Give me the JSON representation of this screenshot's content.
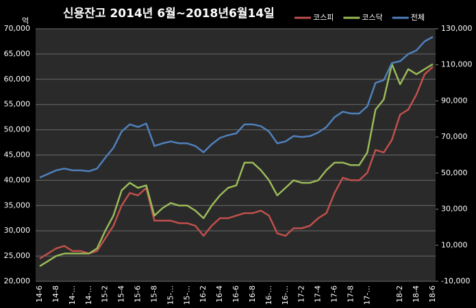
{
  "chart_data": {
    "type": "line",
    "title": "신용잔고  2014년 6월~2018년6월14일",
    "y_unit": "억",
    "categories": [
      "14-6",
      null,
      "14-8",
      null,
      "14-...",
      null,
      "14-...",
      null,
      "15-2",
      null,
      "15-4",
      null,
      "15-6",
      null,
      "15-8",
      null,
      "15-...",
      null,
      "15-...",
      null,
      "16-2",
      null,
      "16-4",
      null,
      "16-6",
      null,
      "16-8",
      null,
      "16-...",
      null,
      "16-...",
      null,
      "17-2",
      null,
      "17-4",
      null,
      "17-6",
      null,
      "17-8",
      null,
      "17-...",
      null,
      null,
      null,
      "18-2",
      null,
      "18-4",
      null,
      "18-6"
    ],
    "series": [
      {
        "name": "코스피",
        "color": "#c0504d",
        "values": [
          24500,
          25500,
          26500,
          27000,
          26000,
          26000,
          25500,
          26000,
          28500,
          31000,
          35000,
          37500,
          37000,
          38500,
          32000,
          32000,
          32000,
          31500,
          31500,
          31000,
          29000,
          31000,
          32500,
          32500,
          33000,
          33500,
          33500,
          34000,
          33000,
          29500,
          29000,
          30500,
          30500,
          31000,
          32500,
          33500,
          37500,
          40500,
          40000,
          40000,
          41500,
          46000,
          45500,
          48000,
          53000,
          54000,
          57000,
          61000,
          62500
        ]
      },
      {
        "name": "코스닥",
        "color": "#9bbb59",
        "values": [
          23000,
          24000,
          25000,
          25500,
          25500,
          25500,
          25500,
          26500,
          30000,
          33000,
          38000,
          39500,
          38500,
          39000,
          33000,
          34500,
          35500,
          35000,
          35000,
          34000,
          32500,
          35000,
          37000,
          38500,
          39000,
          43500,
          43500,
          42000,
          40000,
          37000,
          38500,
          40000,
          39500,
          39500,
          40000,
          42000,
          43500,
          43500,
          43000,
          43000,
          45500,
          54000,
          56000,
          63000,
          59000,
          62000,
          61000,
          62000,
          63000
        ]
      },
      {
        "name": "전체",
        "color": "#4f81bd",
        "axis": "y2",
        "values": [
          47500,
          49500,
          51500,
          52500,
          51500,
          51500,
          51000,
          52500,
          58500,
          64000,
          73000,
          77000,
          75500,
          77500,
          65000,
          66500,
          67500,
          66500,
          66500,
          65000,
          61500,
          66000,
          69500,
          71000,
          72000,
          77000,
          77000,
          76000,
          73000,
          66500,
          67500,
          70500,
          70000,
          70500,
          72500,
          75500,
          81000,
          84000,
          83000,
          83000,
          87000,
          100000,
          101500,
          111000,
          112000,
          116000,
          118000,
          123000,
          125500
        ]
      }
    ],
    "ylim": [
      20000,
      70000
    ],
    "yticks": [
      {
        "value": 20000,
        "label": "20,000"
      },
      {
        "value": 25000,
        "label": "25,000"
      },
      {
        "value": 30000,
        "label": "30,000"
      },
      {
        "value": 35000,
        "label": "35,000"
      },
      {
        "value": 40000,
        "label": "40,000"
      },
      {
        "value": 45000,
        "label": "45,000"
      },
      {
        "value": 50000,
        "label": "50,000"
      },
      {
        "value": 55000,
        "label": "55,000"
      },
      {
        "value": 60000,
        "label": "60,000"
      },
      {
        "value": 65000,
        "label": "65,000"
      },
      {
        "value": 70000,
        "label": "70,000"
      }
    ],
    "y2lim": [
      -10000,
      130000
    ],
    "y2ticks": [
      {
        "value": -10000,
        "label": "-10,000"
      },
      {
        "value": 10000,
        "label": "10,000"
      },
      {
        "value": 30000,
        "label": "30,000"
      },
      {
        "value": 50000,
        "label": "50,000"
      },
      {
        "value": 70000,
        "label": "70,000"
      },
      {
        "value": 90000,
        "label": "90,000"
      },
      {
        "value": 110000,
        "label": "110,000"
      },
      {
        "value": 130000,
        "label": "130,000"
      }
    ],
    "grid": true,
    "legend": "top-right"
  }
}
